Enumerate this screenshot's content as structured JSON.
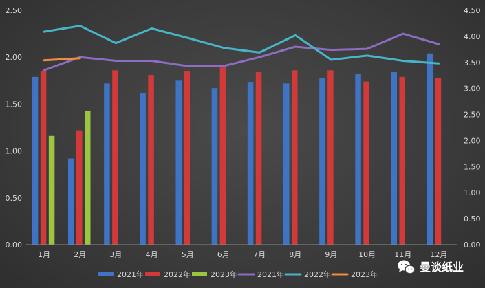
{
  "chart_data": {
    "type": "bar",
    "categories": [
      "1月",
      "2月",
      "3月",
      "4月",
      "5月",
      "6月",
      "7月",
      "8月",
      "9月",
      "10月",
      "11月",
      "12月"
    ],
    "bar_series": [
      {
        "name": "2021年",
        "color": "#3f74c4",
        "values": [
          1.79,
          0.92,
          1.72,
          1.62,
          1.75,
          1.67,
          1.73,
          1.72,
          1.78,
          1.82,
          1.84,
          2.04
        ]
      },
      {
        "name": "2022年",
        "color": "#d23a3a",
        "values": [
          1.85,
          1.22,
          1.86,
          1.81,
          1.85,
          1.89,
          1.84,
          1.86,
          1.86,
          1.74,
          1.79,
          1.78
        ]
      },
      {
        "name": "2023年",
        "color": "#9bc63f",
        "values": [
          1.16,
          1.43
        ]
      }
    ],
    "line_series": [
      {
        "name": "2021年",
        "color": "#8e6cc0",
        "values": [
          3.35,
          3.6,
          3.53,
          3.53,
          3.43,
          3.43,
          3.6,
          3.8,
          3.74,
          3.76,
          4.05,
          3.85
        ]
      },
      {
        "name": "2022年",
        "color": "#47b5c8",
        "values": [
          4.09,
          4.2,
          3.87,
          4.15,
          3.97,
          3.78,
          3.69,
          4.02,
          3.55,
          3.63,
          3.53,
          3.48
        ]
      },
      {
        "name": "2023年",
        "color": "#ef8e3c",
        "values": [
          3.54,
          3.58
        ]
      }
    ],
    "y_left": {
      "min": 0,
      "max": 2.5,
      "ticks": [
        "0.00",
        "0.50",
        "1.00",
        "1.50",
        "2.00",
        "2.50"
      ]
    },
    "y_right": {
      "min": 0,
      "max": 4.5,
      "ticks": [
        "0.00",
        "0.50",
        "1.00",
        "1.50",
        "2.00",
        "2.50",
        "3.00",
        "3.50",
        "4.00",
        "4.50"
      ]
    },
    "grid": false,
    "legend_position": "bottom"
  },
  "watermark": {
    "text": "曼谈纸业",
    "icon": "wechat-icon"
  }
}
